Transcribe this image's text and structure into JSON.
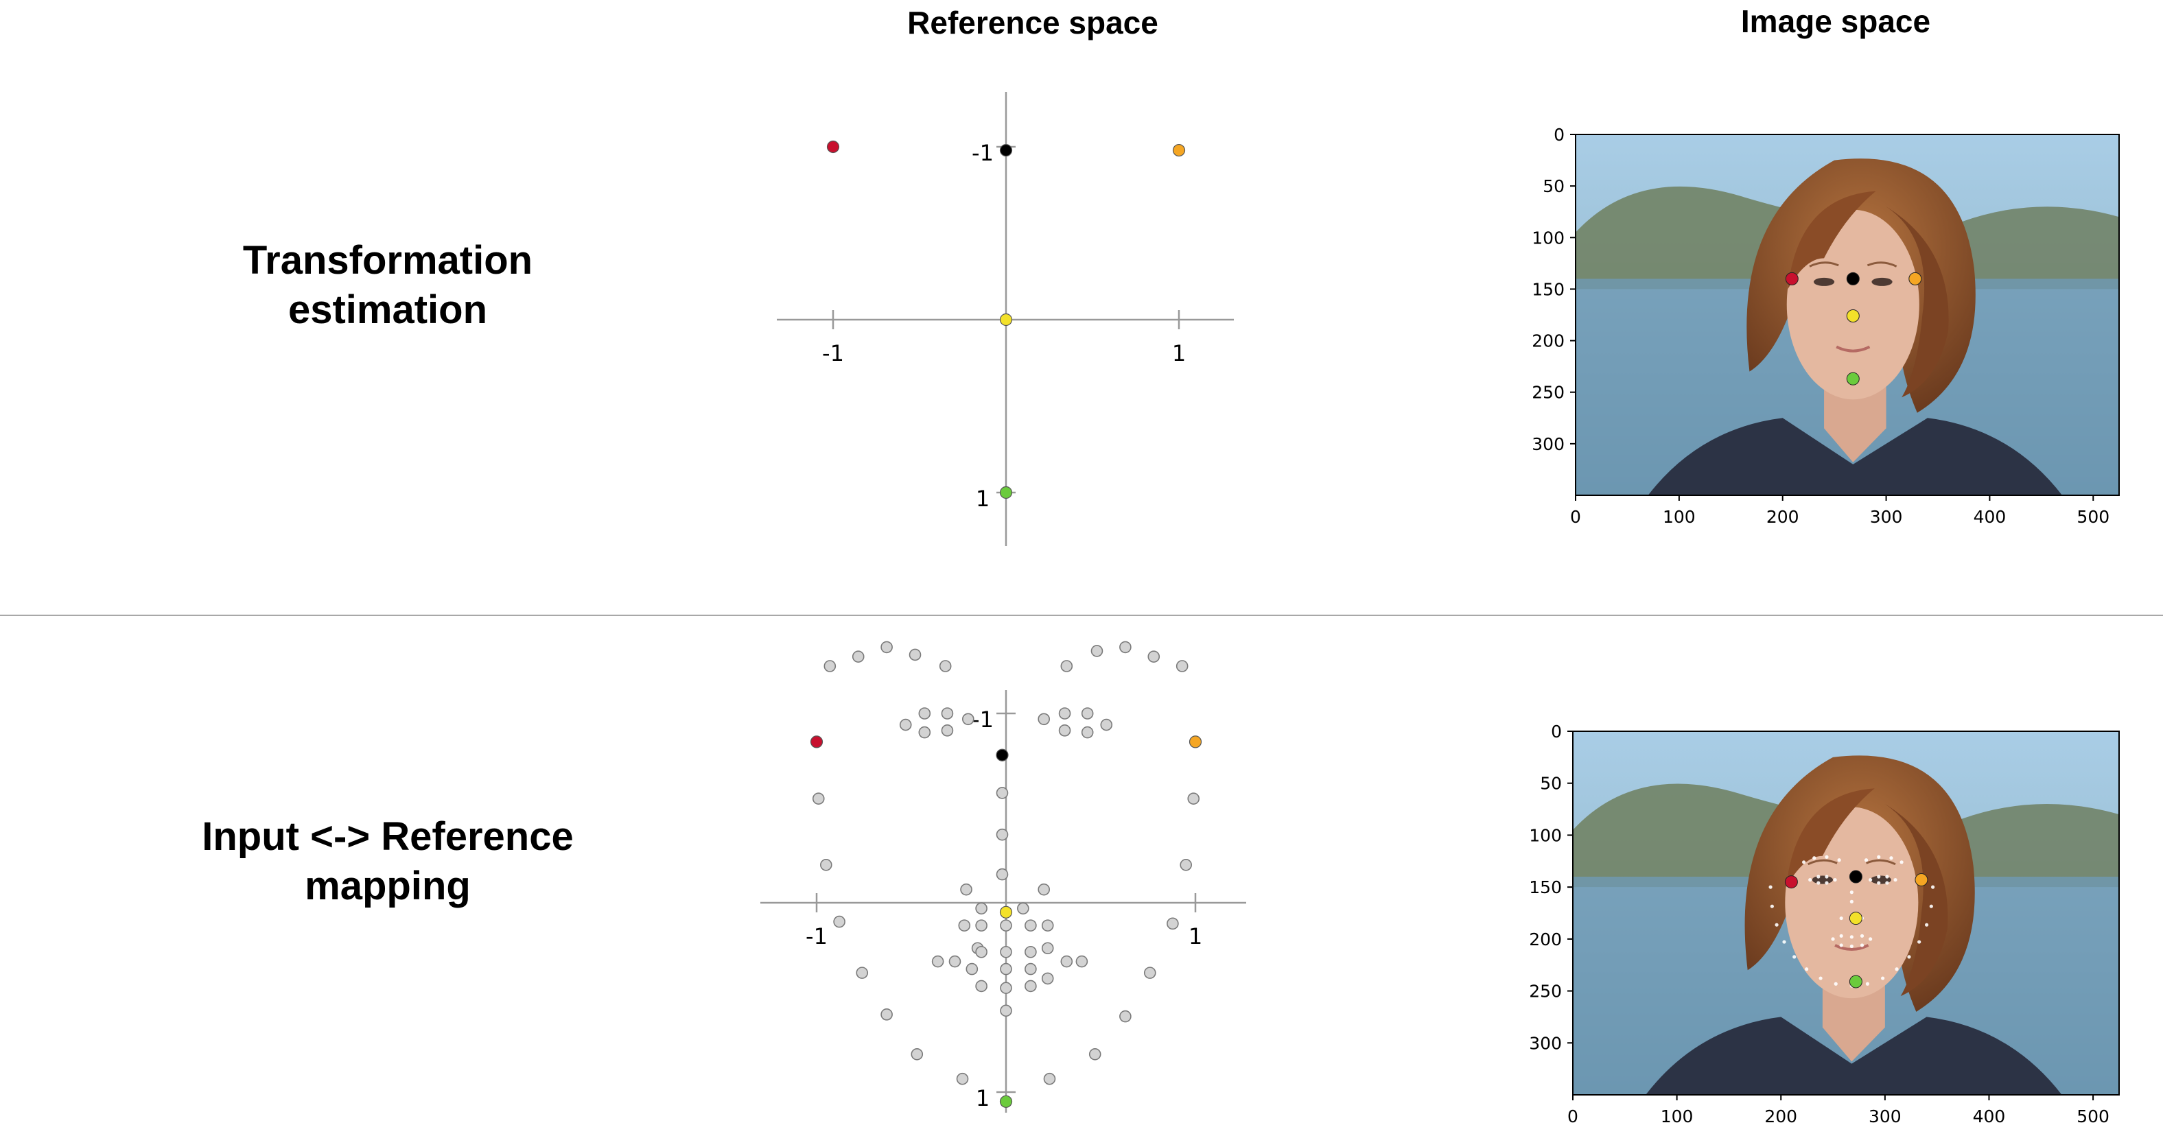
{
  "headers": {
    "reference_space": "Reference space",
    "image_space": "Image space"
  },
  "rows": [
    {
      "label": "Transformation\nestimation"
    },
    {
      "label": "Input <-> Reference\nmapping"
    }
  ],
  "colors": {
    "red": "#c8102e",
    "orange": "#f5a623",
    "black": "#000000",
    "yellow": "#f3e12a",
    "green": "#6bcb3c",
    "gray_landmark": "#d3d3d3",
    "axis": "#999999"
  },
  "chart_data": [
    {
      "type": "scatter",
      "title": "",
      "xlim": [
        -1.2,
        1.2
      ],
      "ylim": [
        -1.35,
        1.3
      ],
      "y_inverted": true,
      "ticks": {
        "x": [
          "-1",
          "1"
        ],
        "y": [
          "-1",
          "1"
        ]
      },
      "keypoints": [
        {
          "name": "red",
          "x": -1.0,
          "y": -1.0,
          "color": "#c8102e"
        },
        {
          "name": "orange",
          "x": 1.0,
          "y": -0.98,
          "color": "#f5a623"
        },
        {
          "name": "black",
          "x": 0.0,
          "y": -0.98,
          "color": "#000000"
        },
        {
          "name": "yellow",
          "x": 0.0,
          "y": 0.0,
          "color": "#f3e12a"
        },
        {
          "name": "green",
          "x": 0.0,
          "y": 1.0,
          "color": "#6bcb3c"
        }
      ]
    },
    {
      "type": "scatter",
      "title": "",
      "xlim": [
        -1.2,
        1.2
      ],
      "ylim": [
        -1.35,
        1.3
      ],
      "y_inverted": true,
      "ticks": {
        "x": [
          "-1",
          "1"
        ],
        "y": [
          "-1",
          "1"
        ]
      },
      "keypoints": [
        {
          "name": "red",
          "x": -1.0,
          "y": -0.85,
          "color": "#c8102e"
        },
        {
          "name": "orange",
          "x": 1.0,
          "y": -0.85,
          "color": "#f5a623"
        },
        {
          "name": "black",
          "x": -0.02,
          "y": -0.78,
          "color": "#000000"
        },
        {
          "name": "yellow",
          "x": 0.0,
          "y": 0.05,
          "color": "#f3e12a"
        },
        {
          "name": "green",
          "x": 0.0,
          "y": 1.05,
          "color": "#6bcb3c"
        }
      ],
      "landmarks": [
        [
          -0.93,
          -1.25
        ],
        [
          -0.78,
          -1.3
        ],
        [
          -0.63,
          -1.35
        ],
        [
          -0.48,
          -1.31
        ],
        [
          -0.32,
          -1.25
        ],
        [
          0.32,
          -1.25
        ],
        [
          0.48,
          -1.33
        ],
        [
          0.63,
          -1.35
        ],
        [
          0.78,
          -1.3
        ],
        [
          0.93,
          -1.25
        ],
        [
          -0.53,
          -0.94
        ],
        [
          -0.43,
          -1.0
        ],
        [
          -0.31,
          -1.0
        ],
        [
          -0.2,
          -0.97
        ],
        [
          -0.31,
          -0.91
        ],
        [
          -0.43,
          -0.9
        ],
        [
          0.2,
          -0.97
        ],
        [
          0.31,
          -1.0
        ],
        [
          0.43,
          -1.0
        ],
        [
          0.53,
          -0.94
        ],
        [
          0.43,
          -0.9
        ],
        [
          0.31,
          -0.91
        ],
        [
          -0.02,
          -0.58
        ],
        [
          -0.02,
          -0.36
        ],
        [
          -0.02,
          -0.15
        ],
        [
          -0.21,
          -0.07
        ],
        [
          -0.13,
          0.03
        ],
        [
          0.09,
          0.03
        ],
        [
          0.2,
          -0.07
        ],
        [
          -0.99,
          -0.55
        ],
        [
          -0.95,
          -0.2
        ],
        [
          -0.88,
          0.1
        ],
        [
          -0.76,
          0.37
        ],
        [
          -0.63,
          0.59
        ],
        [
          -0.47,
          0.8
        ],
        [
          -0.23,
          0.93
        ],
        [
          0.23,
          0.93
        ],
        [
          0.47,
          0.8
        ],
        [
          0.63,
          0.6
        ],
        [
          0.76,
          0.37
        ],
        [
          0.88,
          0.11
        ],
        [
          0.95,
          -0.2
        ],
        [
          0.99,
          -0.55
        ],
        [
          -0.36,
          0.31
        ],
        [
          -0.27,
          0.31
        ],
        [
          -0.15,
          0.24
        ],
        [
          -0.13,
          0.12
        ],
        [
          0.0,
          0.12
        ],
        [
          0.13,
          0.12
        ],
        [
          0.22,
          0.24
        ],
        [
          0.32,
          0.31
        ],
        [
          0.4,
          0.31
        ],
        [
          0.22,
          0.4
        ],
        [
          0.13,
          0.44
        ],
        [
          0.0,
          0.45
        ],
        [
          -0.13,
          0.44
        ],
        [
          -0.18,
          0.35
        ],
        [
          -0.13,
          0.26
        ],
        [
          0.0,
          0.26
        ],
        [
          0.13,
          0.26
        ],
        [
          0.0,
          0.35
        ],
        [
          0.0,
          0.57
        ],
        [
          -0.22,
          0.12
        ],
        [
          0.22,
          0.12
        ],
        [
          0.13,
          0.35
        ]
      ]
    },
    {
      "type": "image-plot",
      "title": "",
      "xlim": [
        0,
        525
      ],
      "ylim": [
        350,
        0
      ],
      "xticks": [
        0,
        100,
        200,
        300,
        400,
        500
      ],
      "yticks": [
        0,
        50,
        100,
        150,
        200,
        250,
        300
      ],
      "keypoints": [
        {
          "name": "red",
          "x": 209,
          "y": 140,
          "color": "#c8102e"
        },
        {
          "name": "black",
          "x": 268,
          "y": 140,
          "color": "#000000"
        },
        {
          "name": "orange",
          "x": 328,
          "y": 140,
          "color": "#f5a623"
        },
        {
          "name": "yellow",
          "x": 268,
          "y": 176,
          "color": "#f3e12a"
        },
        {
          "name": "green",
          "x": 268,
          "y": 237,
          "color": "#6bcb3c"
        }
      ]
    },
    {
      "type": "image-plot",
      "title": "",
      "xlim": [
        0,
        525
      ],
      "ylim": [
        350,
        0
      ],
      "xticks": [
        0,
        100,
        200,
        300,
        400,
        500
      ],
      "yticks": [
        0,
        50,
        100,
        150,
        200,
        250,
        300
      ],
      "keypoints": [
        {
          "name": "red",
          "x": 210,
          "y": 145,
          "color": "#c8102e"
        },
        {
          "name": "black",
          "x": 272,
          "y": 140,
          "color": "#000000"
        },
        {
          "name": "orange",
          "x": 335,
          "y": 143,
          "color": "#f5a623"
        },
        {
          "name": "yellow",
          "x": 272,
          "y": 180,
          "color": "#f3e12a"
        },
        {
          "name": "green",
          "x": 272,
          "y": 241,
          "color": "#6bcb3c"
        }
      ]
    }
  ]
}
